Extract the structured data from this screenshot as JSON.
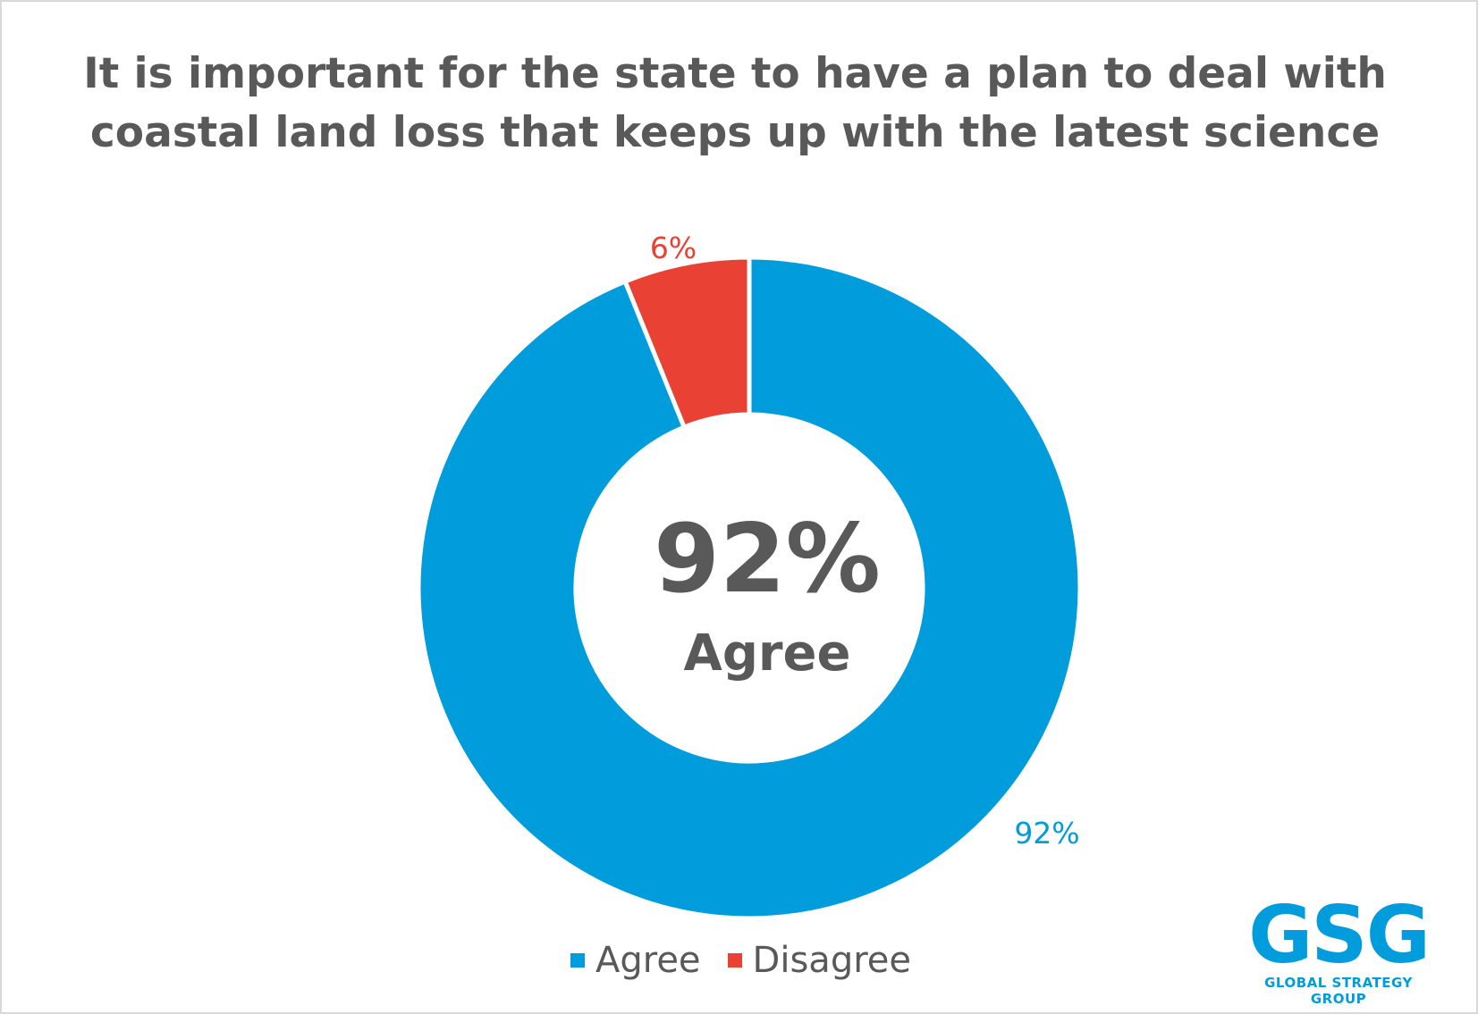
{
  "chart_data": {
    "type": "pie",
    "variant": "donut",
    "title": "It is important for the state to have a plan to deal with coastal land loss that keeps up with the latest science",
    "categories": [
      "Agree",
      "Disagree"
    ],
    "values": [
      92,
      6
    ],
    "value_labels": [
      "92%",
      "6%"
    ],
    "colors": [
      "#019cdc",
      "#ea4135"
    ],
    "center_value": "92%",
    "center_caption": "Agree",
    "legend": {
      "position": "bottom",
      "entries": [
        "Agree",
        "Disagree"
      ]
    }
  },
  "logo": {
    "mark": "GSG",
    "subtitle": "GLOBAL STRATEGY GROUP",
    "color": "#019cdc"
  }
}
